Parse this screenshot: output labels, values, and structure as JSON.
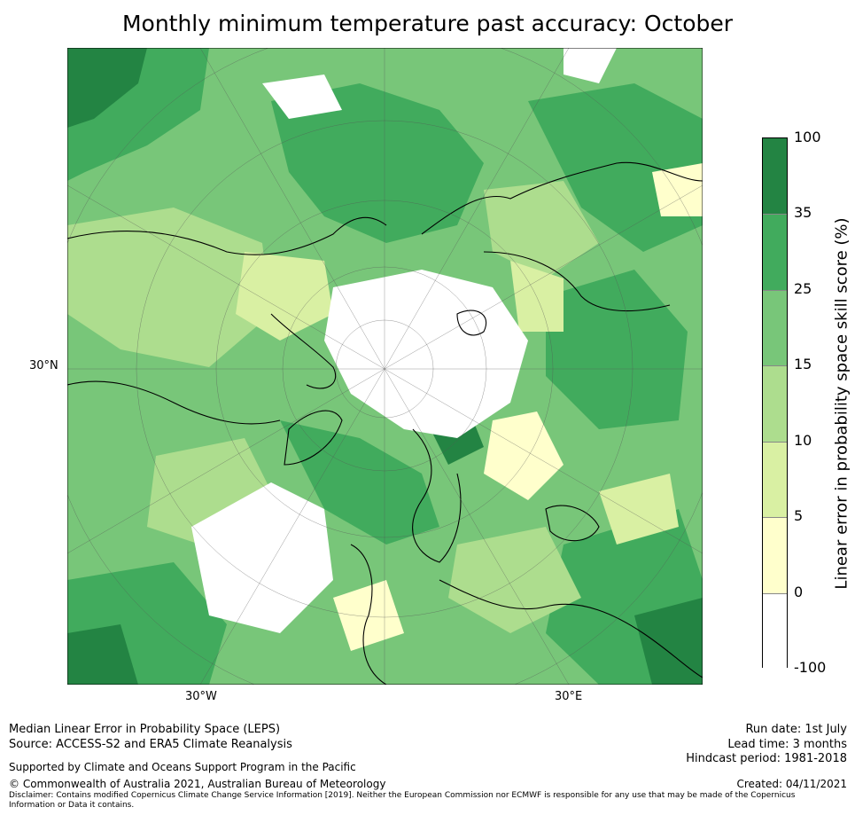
{
  "title": "Monthly minimum temperature past accuracy: October",
  "map": {
    "projection": "north-polar-stereographic",
    "lat_labels": [
      "30°N"
    ],
    "lon_labels": [
      "30°W",
      "30°E"
    ]
  },
  "colorbar": {
    "label": "Linear error in probability space skill score (%)",
    "ticks": [
      "100",
      "35",
      "25",
      "15",
      "10",
      "5",
      "0",
      "-100"
    ],
    "bins": [
      {
        "from": -100,
        "to": 0,
        "color": "#ffffff"
      },
      {
        "from": 0,
        "to": 5,
        "color": "#ffffcc"
      },
      {
        "from": 5,
        "to": 10,
        "color": "#d9f0a3"
      },
      {
        "from": 10,
        "to": 15,
        "color": "#addd8e"
      },
      {
        "from": 15,
        "to": 25,
        "color": "#78c679"
      },
      {
        "from": 25,
        "to": 35,
        "color": "#41ab5d"
      },
      {
        "from": 35,
        "to": 100,
        "color": "#238443"
      }
    ]
  },
  "footer": {
    "metric": "Median Linear Error in Probability Space (LEPS)",
    "source": "Source: ACCESS-S2 and ERA5 Climate Reanalysis",
    "support": "Supported by Climate and Oceans Support Program in the Pacific",
    "copyright": "© Commonwealth of Australia 2021, Australian Bureau of Meteorology",
    "disclaimer": "Disclaimer: Contains modified Copernicus Climate Change Service Information [2019]. Neither the European Commission nor ECMWF is responsible for any use that may be made of the Copernicus Information or Data it contains.",
    "run_date": "Run date: 1st July",
    "lead_time": "Lead time: 3 months",
    "hindcast": "Hindcast period: 1981-2018",
    "created": "Created: 04/11/2021"
  }
}
